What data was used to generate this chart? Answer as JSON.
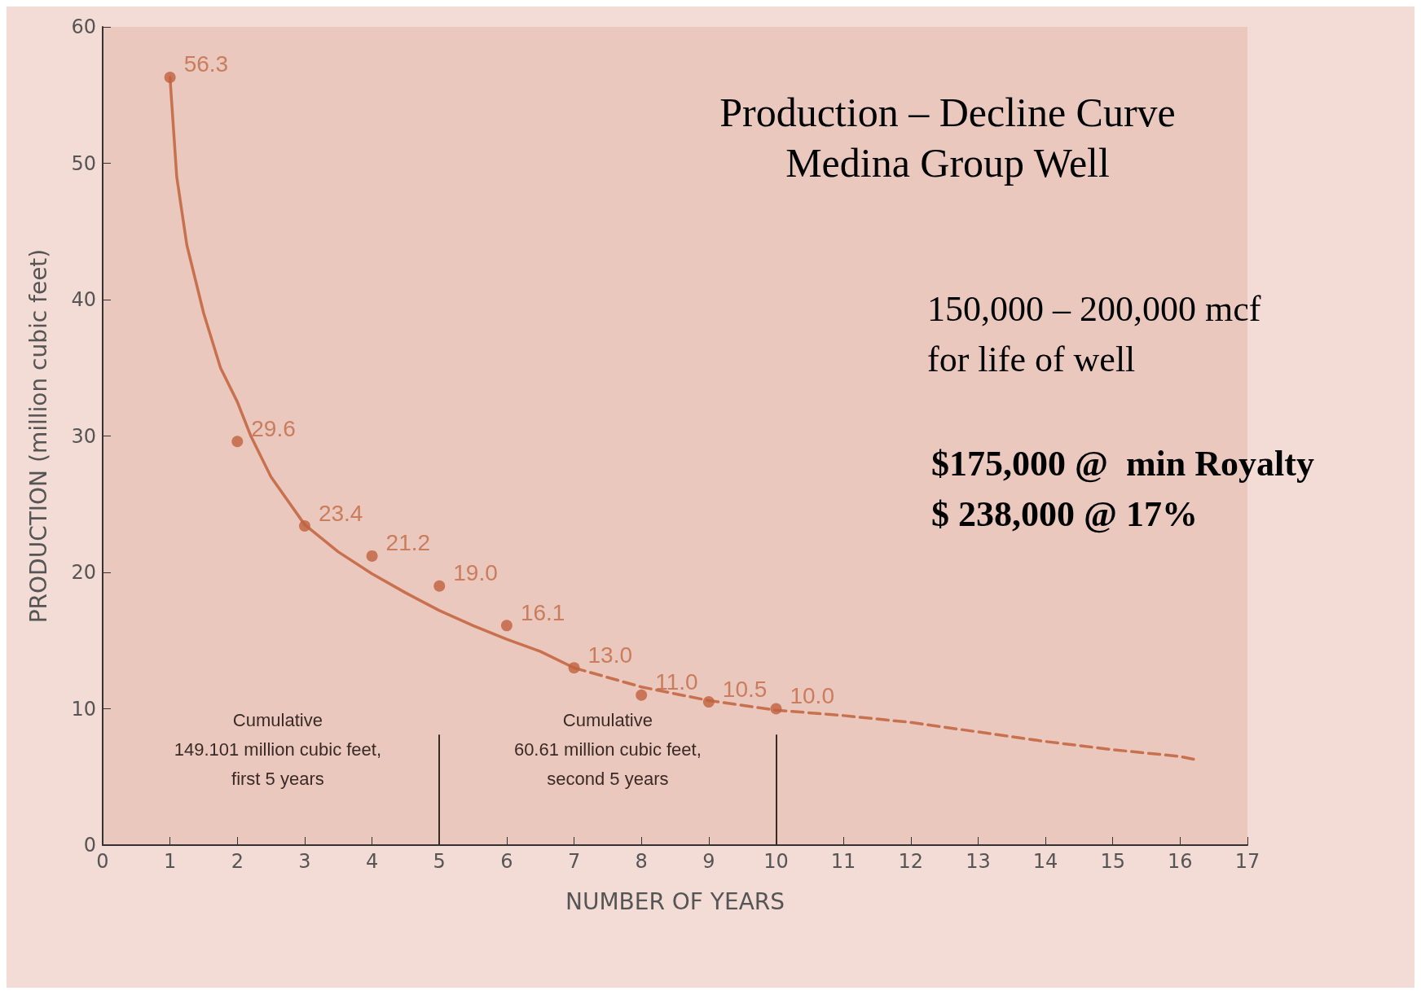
{
  "chart_data": {
    "type": "scatter",
    "title": "Production – Decline Curve",
    "subtitle": "Medina Group Well",
    "xlabel": "NUMBER OF YEARS",
    "ylabel": "PRODUCTION (million cubic feet)",
    "xlim": [
      0,
      17
    ],
    "xticks": [
      0,
      1,
      2,
      3,
      4,
      5,
      6,
      7,
      8,
      9,
      10,
      11,
      12,
      13,
      14,
      15,
      16,
      17
    ],
    "ylim": [
      0,
      60
    ],
    "yticks": [
      0,
      10,
      20,
      30,
      40,
      50,
      60
    ],
    "grid": false,
    "series": [
      {
        "type": "line",
        "color": "#c8714f",
        "line_style": "solid",
        "marker": "none",
        "x": [
          1,
          1.1,
          1.25,
          1.5,
          1.75,
          2,
          2.2,
          2.5,
          3,
          3.5,
          4,
          4.5,
          5,
          5.5,
          6,
          6.5,
          7
        ],
        "values": [
          56.3,
          49,
          44,
          39,
          35,
          32.5,
          30,
          27,
          23.5,
          21.5,
          19.9,
          18.5,
          17.2,
          16.1,
          15.1,
          14.2,
          13.0
        ]
      },
      {
        "type": "line",
        "color": "#c8714f",
        "line_style": "dashed",
        "marker": "none",
        "x": [
          7,
          8,
          9,
          10,
          11,
          12,
          13,
          14,
          15,
          16,
          16.2
        ],
        "values": [
          13.0,
          11.6,
          10.6,
          9.9,
          9.5,
          9.0,
          8.3,
          7.6,
          7.0,
          6.5,
          6.3
        ]
      },
      {
        "type": "scatter",
        "color": "#c0623e",
        "marker": "circle",
        "x": [
          1,
          2,
          3,
          4,
          5,
          6,
          7,
          8,
          9,
          10
        ],
        "values": [
          56.3,
          29.6,
          23.4,
          21.2,
          19.0,
          16.1,
          13.0,
          11.0,
          10.5,
          10.0
        ],
        "value_labels": [
          "56.3",
          "29.6",
          "23.4",
          "21.2",
          "19.0",
          "16.1",
          "13.0",
          "11.0",
          "10.5",
          "10.0"
        ]
      }
    ],
    "ref_lines": [
      {
        "axis": "x",
        "value": 5,
        "color": "#3a2a26"
      },
      {
        "axis": "x",
        "value": 10,
        "color": "#3a2a26"
      }
    ],
    "annotations": [
      "Cumulative\n149.101 million cubic feet,\nfirst 5 years",
      "Cumulative\n60.61 million cubic feet,\nsecond 5 years",
      "150,000 – 200,000 mcf\nfor life of well",
      "$175,000 @  min Royalty\n$ 238,000 @ 17%"
    ]
  }
}
